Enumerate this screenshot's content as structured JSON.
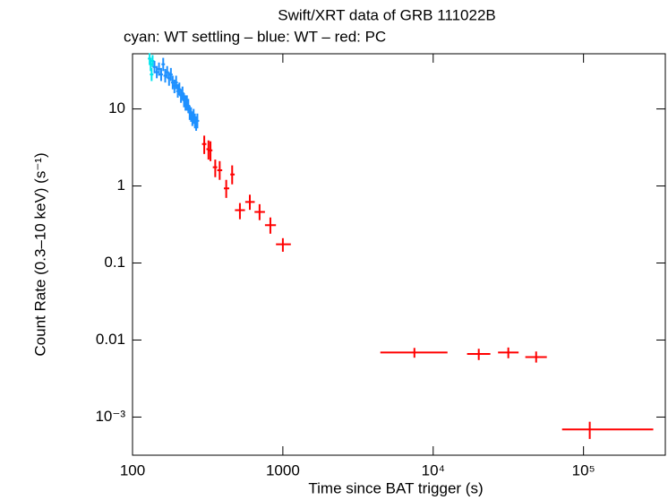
{
  "chart_data": {
    "type": "scatter",
    "title": "Swift/XRT data of GRB 111022B",
    "subtitle": "cyan: WT settling – blue: WT – red: PC",
    "x_label": "Time since BAT trigger (s)",
    "y_label": "Count Rate (0.3–10 keV) (s⁻¹)",
    "xscale": "log",
    "yscale": "log",
    "xlim": [
      100,
      350000
    ],
    "ylim": [
      0.00032,
      52
    ],
    "xticks": [
      100,
      1000,
      {
        "value": 10000,
        "label": "10⁴"
      },
      {
        "value": 100000,
        "label": "10⁵"
      }
    ],
    "yticks": [
      10,
      1,
      0.1,
      0.01,
      {
        "value": 0.001,
        "label": "10⁻³"
      }
    ],
    "series": [
      {
        "name": "WT settling",
        "color": "#00e5ee",
        "x": [
          130,
          132,
          134,
          136
        ],
        "values": [
          45,
          38,
          28,
          42
        ],
        "y_lo": [
          38,
          31,
          23,
          35
        ],
        "y_hi": [
          53,
          46,
          34,
          50
        ]
      },
      {
        "name": "WT",
        "color": "#1e90ff",
        "x": [
          140,
          145,
          150,
          155,
          160,
          165,
          170,
          175,
          180,
          185,
          190,
          195,
          200,
          205,
          210,
          215,
          220,
          225,
          230,
          235,
          240,
          245,
          250,
          255,
          260,
          265,
          270
        ],
        "values": [
          35,
          30,
          33,
          28,
          38,
          27,
          30,
          25,
          28,
          22,
          20,
          22,
          17,
          18,
          15,
          16,
          13,
          12,
          12,
          11,
          9,
          8.5,
          7.5,
          8,
          7,
          6.5,
          7
        ],
        "y_lo": [
          29,
          25,
          27,
          23,
          31,
          22,
          25,
          20,
          23,
          18,
          16,
          18,
          14,
          15,
          12,
          13,
          10.5,
          9.5,
          9.5,
          8.8,
          7.2,
          6.8,
          6,
          6.4,
          5.6,
          5.2,
          5.6
        ],
        "y_hi": [
          42,
          36,
          40,
          34,
          46,
          33,
          36,
          30,
          34,
          27,
          24,
          27,
          21,
          22,
          18,
          19.5,
          16,
          15,
          15,
          13.5,
          11,
          10.5,
          9.3,
          10,
          8.7,
          8,
          8.7
        ]
      },
      {
        "name": "PC",
        "color": "#ff0000",
        "x": [
          300,
          320,
          330,
          355,
          380,
          420,
          460,
          518,
          603,
          700,
          826,
          1000,
          7500,
          20100,
          31600,
          48400,
          110000
        ],
        "values": [
          3.5,
          3.0,
          2.9,
          1.75,
          1.6,
          0.93,
          1.41,
          0.485,
          0.62,
          0.46,
          0.31,
          0.175,
          0.0069,
          0.0066,
          0.0069,
          0.006,
          0.00069
        ],
        "x_lo": [
          290,
          310,
          322,
          342,
          366,
          405,
          447,
          480,
          562,
          648,
          760,
          900,
          4450,
          16800,
          27000,
          41000,
          72000
        ],
        "x_hi": [
          310,
          322,
          340,
          366,
          395,
          440,
          478,
          560,
          650,
          760,
          900,
          1130,
          12450,
          24000,
          37000,
          57000,
          291000
        ],
        "y_lo": [
          2.6,
          2.2,
          2.1,
          1.3,
          1.2,
          0.7,
          1.05,
          0.37,
          0.49,
          0.36,
          0.24,
          0.14,
          0.0059,
          0.0055,
          0.0058,
          0.0051,
          0.00052
        ],
        "y_hi": [
          4.5,
          3.9,
          3.8,
          2.2,
          2.1,
          1.2,
          1.85,
          0.6,
          0.77,
          0.58,
          0.39,
          0.21,
          0.0079,
          0.0077,
          0.008,
          0.0071,
          0.00087
        ]
      }
    ]
  }
}
